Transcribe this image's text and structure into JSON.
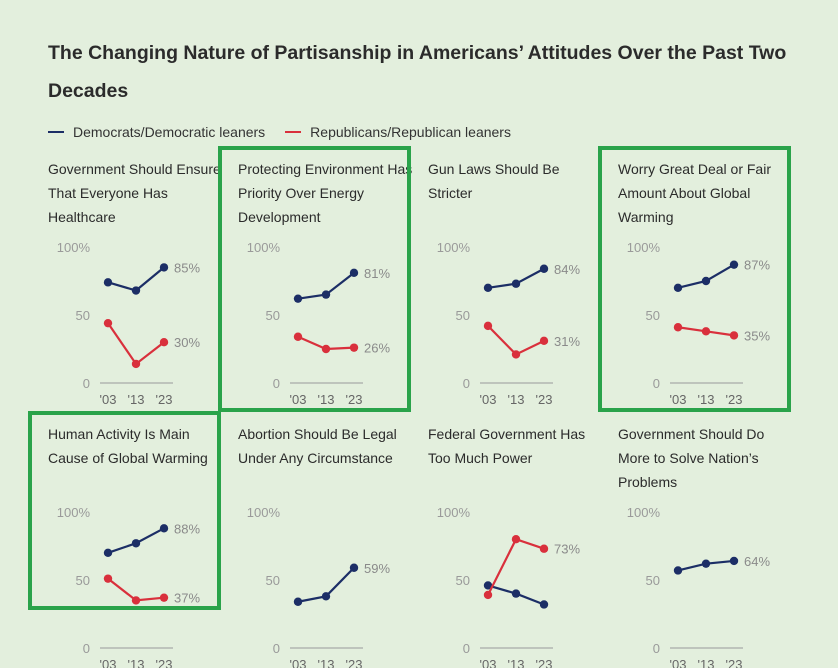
{
  "title": "The Changing Nature of Partisanship in Americans’ Attitudes Over the Past Two Decades",
  "legend": [
    {
      "label": "Democrats/Democratic leaners",
      "color": "#1c2e66"
    },
    {
      "label": "Republicans/Republican leaners",
      "color": "#d9303c"
    }
  ],
  "colors": {
    "highlight": "#2aa34a",
    "background": "#e3efdd"
  },
  "chart_data": [
    {
      "type": "line",
      "title": "Government  Should Ensure That Everyone Has Healthcare",
      "x": [
        "'03",
        "'13",
        "'23"
      ],
      "ylim": [
        0,
        100
      ],
      "yticks": [
        "100%",
        "50",
        "0"
      ],
      "highlighted": false,
      "series": [
        {
          "name": "Democrats/Democratic leaners",
          "values": [
            74,
            68,
            85
          ],
          "end_label": "85%"
        },
        {
          "name": "Republicans/Republican leaners",
          "values": [
            44,
            14,
            30
          ],
          "end_label": "30%"
        }
      ]
    },
    {
      "type": "line",
      "title": "Protecting Environment Has Priority Over Energy Development",
      "x": [
        "'03",
        "'13",
        "'23"
      ],
      "ylim": [
        0,
        100
      ],
      "yticks": [
        "100%",
        "50",
        "0"
      ],
      "highlighted": true,
      "series": [
        {
          "name": "Democrats/Democratic leaners",
          "values": [
            62,
            65,
            81
          ],
          "end_label": "81%"
        },
        {
          "name": "Republicans/Republican leaners",
          "values": [
            34,
            25,
            26
          ],
          "end_label": "26%"
        }
      ]
    },
    {
      "type": "line",
      "title": "Gun Laws Should Be Stricter",
      "x": [
        "'03",
        "'13",
        "'23"
      ],
      "ylim": [
        0,
        100
      ],
      "yticks": [
        "100%",
        "50",
        "0"
      ],
      "highlighted": false,
      "series": [
        {
          "name": "Democrats/Democratic leaners",
          "values": [
            70,
            73,
            84
          ],
          "end_label": "84%"
        },
        {
          "name": "Republicans/Republican leaners",
          "values": [
            42,
            21,
            31
          ],
          "end_label": "31%"
        }
      ]
    },
    {
      "type": "line",
      "title": "Worry Great Deal or Fair Amount About Global Warming",
      "x": [
        "'03",
        "'13",
        "'23"
      ],
      "ylim": [
        0,
        100
      ],
      "yticks": [
        "100%",
        "50",
        "0"
      ],
      "highlighted": true,
      "series": [
        {
          "name": "Democrats/Democratic leaners",
          "values": [
            70,
            75,
            87
          ],
          "end_label": "87%"
        },
        {
          "name": "Republicans/Republican leaners",
          "values": [
            41,
            38,
            35
          ],
          "end_label": "35%"
        }
      ]
    },
    {
      "type": "line",
      "title": "Human Activity Is Main Cause of Global Warming",
      "x": [
        "'03",
        "'13",
        "'23"
      ],
      "ylim": [
        0,
        100
      ],
      "yticks": [
        "100%",
        "50",
        "0"
      ],
      "highlighted": true,
      "series": [
        {
          "name": "Democrats/Democratic leaners",
          "values": [
            70,
            77,
            88
          ],
          "end_label": "88%"
        },
        {
          "name": "Republicans/Republican leaners",
          "values": [
            51,
            35,
            37
          ],
          "end_label": "37%"
        }
      ]
    },
    {
      "type": "line",
      "title": "Abortion Should Be Legal Under Any Circumstance",
      "x": [
        "'03",
        "'13",
        "'23"
      ],
      "ylim": [
        0,
        100
      ],
      "yticks": [
        "100%",
        "50",
        "0"
      ],
      "highlighted": false,
      "series": [
        {
          "name": "Democrats/Democratic leaners",
          "values": [
            34,
            38,
            59
          ],
          "end_label": "59%"
        }
      ]
    },
    {
      "type": "line",
      "title": "Federal Government Has Too Much Power",
      "x": [
        "'03",
        "'13",
        "'23"
      ],
      "ylim": [
        0,
        100
      ],
      "yticks": [
        "100%",
        "50",
        "0"
      ],
      "highlighted": false,
      "series": [
        {
          "name": "Democrats/Democratic leaners",
          "values": [
            46,
            40,
            32
          ]
        },
        {
          "name": "Republicans/Republican leaners",
          "values": [
            39,
            80,
            73
          ],
          "end_label": "73%"
        }
      ]
    },
    {
      "type": "line",
      "title": "Government Should Do More to Solve Nation’s Problems",
      "x": [
        "'03",
        "'13",
        "'23"
      ],
      "ylim": [
        0,
        100
      ],
      "yticks": [
        "100%",
        "50",
        "0"
      ],
      "highlighted": false,
      "series": [
        {
          "name": "Democrats/Democratic leaners",
          "values": [
            57,
            62,
            64
          ],
          "end_label": "64%"
        }
      ]
    }
  ]
}
